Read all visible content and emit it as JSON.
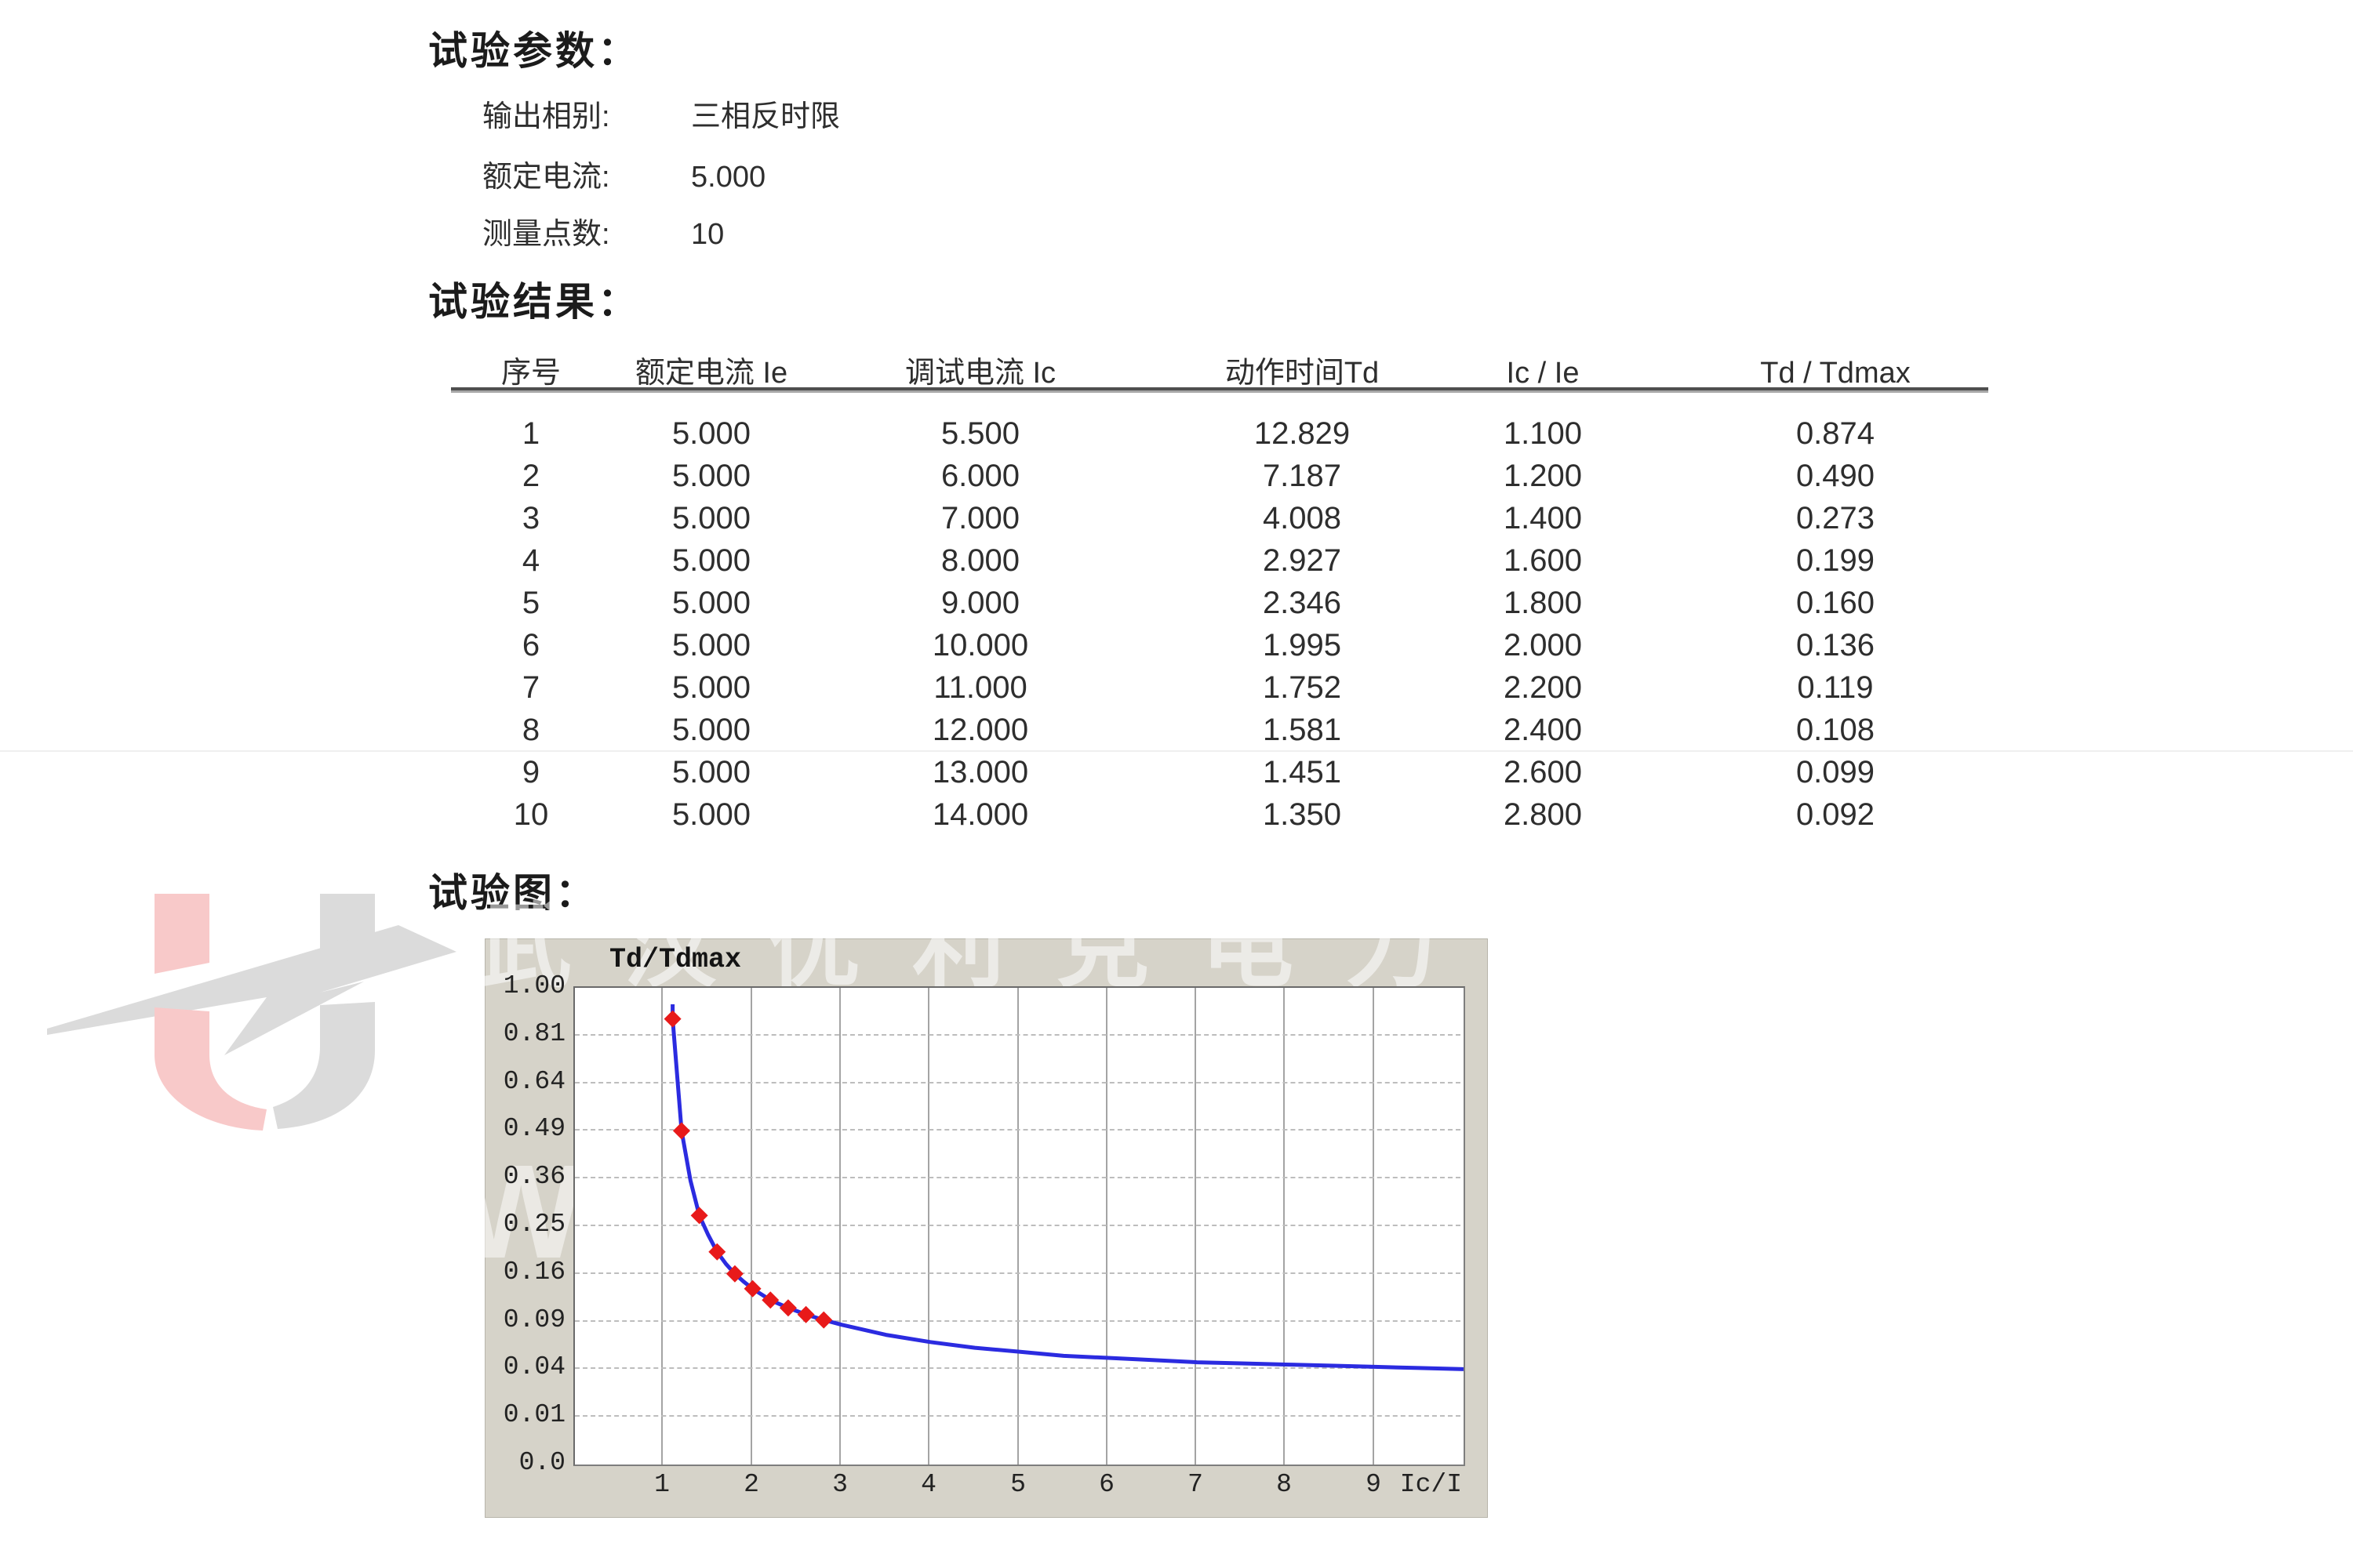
{
  "params_section": {
    "title": "试验参数：",
    "rows": [
      {
        "label": "输出相别:",
        "value": "三相反时限"
      },
      {
        "label": "额定电流:",
        "value": "5.000"
      },
      {
        "label": "测量点数:",
        "value": "10"
      }
    ]
  },
  "results_section": {
    "title": "试验结果：",
    "table": {
      "headers": [
        "序号",
        "额定电流 Ie",
        "调试电流 Ic",
        "动作时间Td",
        "Ic / Ie",
        "Td / Tdmax"
      ],
      "rows": [
        [
          "1",
          "5.000",
          "5.500",
          "12.829",
          "1.100",
          "0.874"
        ],
        [
          "2",
          "5.000",
          "6.000",
          "7.187",
          "1.200",
          "0.490"
        ],
        [
          "3",
          "5.000",
          "7.000",
          "4.008",
          "1.400",
          "0.273"
        ],
        [
          "4",
          "5.000",
          "8.000",
          "2.927",
          "1.600",
          "0.199"
        ],
        [
          "5",
          "5.000",
          "9.000",
          "2.346",
          "1.800",
          "0.160"
        ],
        [
          "6",
          "5.000",
          "10.000",
          "1.995",
          "2.000",
          "0.136"
        ],
        [
          "7",
          "5.000",
          "11.000",
          "1.752",
          "2.200",
          "0.119"
        ],
        [
          "8",
          "5.000",
          "12.000",
          "1.581",
          "2.400",
          "0.108"
        ],
        [
          "9",
          "5.000",
          "13.000",
          "1.451",
          "2.600",
          "0.099"
        ],
        [
          "10",
          "5.000",
          "14.000",
          "1.350",
          "2.800",
          "0.092"
        ]
      ]
    }
  },
  "chart_section": {
    "title": "试验图："
  },
  "chart_data": {
    "type": "line",
    "title": "Td/Tdmax",
    "xlabel": "Ic/I",
    "ylabel": "Td/Tdmax",
    "xlim": [
      0,
      10
    ],
    "ylim": [
      0,
      1
    ],
    "y_scale": "sqrt",
    "grid": true,
    "legend_position": "none",
    "x_tick_labels": [
      "1",
      "2",
      "3",
      "4",
      "5",
      "6",
      "7",
      "8",
      "9"
    ],
    "x_tick_values": [
      1,
      2,
      3,
      4,
      5,
      6,
      7,
      8,
      9
    ],
    "y_tick_labels": [
      "1.00",
      "0.81",
      "0.64",
      "0.49",
      "0.36",
      "0.25",
      "0.16",
      "0.09",
      "0.04",
      "0.01",
      "0.0"
    ],
    "y_tick_values": [
      1.0,
      0.81,
      0.64,
      0.49,
      0.36,
      0.25,
      0.16,
      0.09,
      0.04,
      0.01,
      0.0
    ],
    "series": [
      {
        "name": "inverse-time-curve",
        "color": "#2b2be0",
        "x": [
          1.1,
          1.1,
          1.2,
          1.3,
          1.4,
          1.5,
          1.6,
          1.7,
          1.8,
          1.9,
          2.0,
          2.2,
          2.4,
          2.6,
          2.8,
          3.0,
          3.5,
          4.0,
          4.5,
          5.0,
          5.5,
          6.0,
          6.5,
          7.0,
          7.5,
          8.0,
          8.5,
          9.0,
          9.5,
          10.0
        ],
        "y": [
          0.932,
          0.874,
          0.49,
          0.355,
          0.273,
          0.232,
          0.199,
          0.177,
          0.16,
          0.147,
          0.136,
          0.119,
          0.108,
          0.099,
          0.092,
          0.086,
          0.074,
          0.066,
          0.06,
          0.056,
          0.052,
          0.05,
          0.048,
          0.046,
          0.045,
          0.044,
          0.043,
          0.042,
          0.041,
          0.04
        ]
      }
    ],
    "markers": {
      "shape": "diamond",
      "color": "#e81a1a",
      "x": [
        1.1,
        1.2,
        1.4,
        1.6,
        1.8,
        2.0,
        2.2,
        2.4,
        2.6,
        2.8
      ],
      "y": [
        0.874,
        0.49,
        0.273,
        0.199,
        0.16,
        0.136,
        0.119,
        0.108,
        0.099,
        0.092
      ]
    }
  },
  "watermark": {
    "company_text": "武汉优利克电力",
    "partial_letter": "W",
    "logo_pink": "#f8c9c9",
    "logo_gray": "#dbdbdb"
  },
  "colors": {
    "panel_bg": "#d6d3c9",
    "plot_bg": "#ffffff",
    "curve_blue": "#2b2be0",
    "marker_red": "#e81a1a",
    "grid_gray": "#a4a4a4"
  }
}
